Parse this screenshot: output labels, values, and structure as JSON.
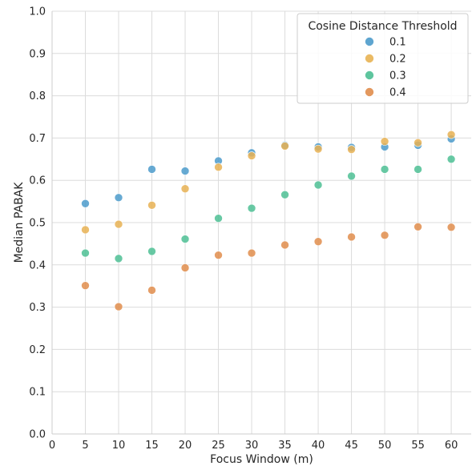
{
  "chart_data": {
    "type": "scatter",
    "xlabel": "Focus Window (m)",
    "ylabel": "Median PABAK",
    "xlim": [
      0,
      63
    ],
    "ylim": [
      0.0,
      1.0
    ],
    "x_ticks": [
      0,
      5,
      10,
      15,
      20,
      25,
      30,
      35,
      40,
      45,
      50,
      55,
      60
    ],
    "y_ticks": [
      0.0,
      0.1,
      0.2,
      0.3,
      0.4,
      0.5,
      0.6,
      0.7,
      0.8,
      0.9,
      1.0
    ],
    "grid": true,
    "legend": {
      "title": "Cosine Distance Threshold",
      "placement": "top-right"
    },
    "x": [
      5,
      10,
      15,
      20,
      25,
      30,
      35,
      40,
      45,
      50,
      55,
      60
    ],
    "series": [
      {
        "name": "0.1",
        "color": "#4c9bcb",
        "values": [
          0.545,
          0.559,
          0.626,
          0.622,
          0.646,
          0.665,
          0.683,
          0.679,
          0.678,
          0.679,
          0.683,
          0.698
        ]
      },
      {
        "name": "0.2",
        "color": "#e8b253",
        "values": [
          0.483,
          0.496,
          0.541,
          0.58,
          0.631,
          0.658,
          0.681,
          0.674,
          0.673,
          0.692,
          0.689,
          0.708
        ]
      },
      {
        "name": "0.3",
        "color": "#4dbf94",
        "values": [
          0.428,
          0.415,
          0.432,
          0.461,
          0.51,
          0.534,
          0.566,
          0.589,
          0.61,
          0.626,
          0.626,
          0.65
        ]
      },
      {
        "name": "0.4",
        "color": "#e08d4c",
        "values": [
          0.351,
          0.301,
          0.34,
          0.393,
          0.423,
          0.428,
          0.447,
          0.455,
          0.466,
          0.47,
          0.49,
          0.489
        ]
      }
    ]
  }
}
